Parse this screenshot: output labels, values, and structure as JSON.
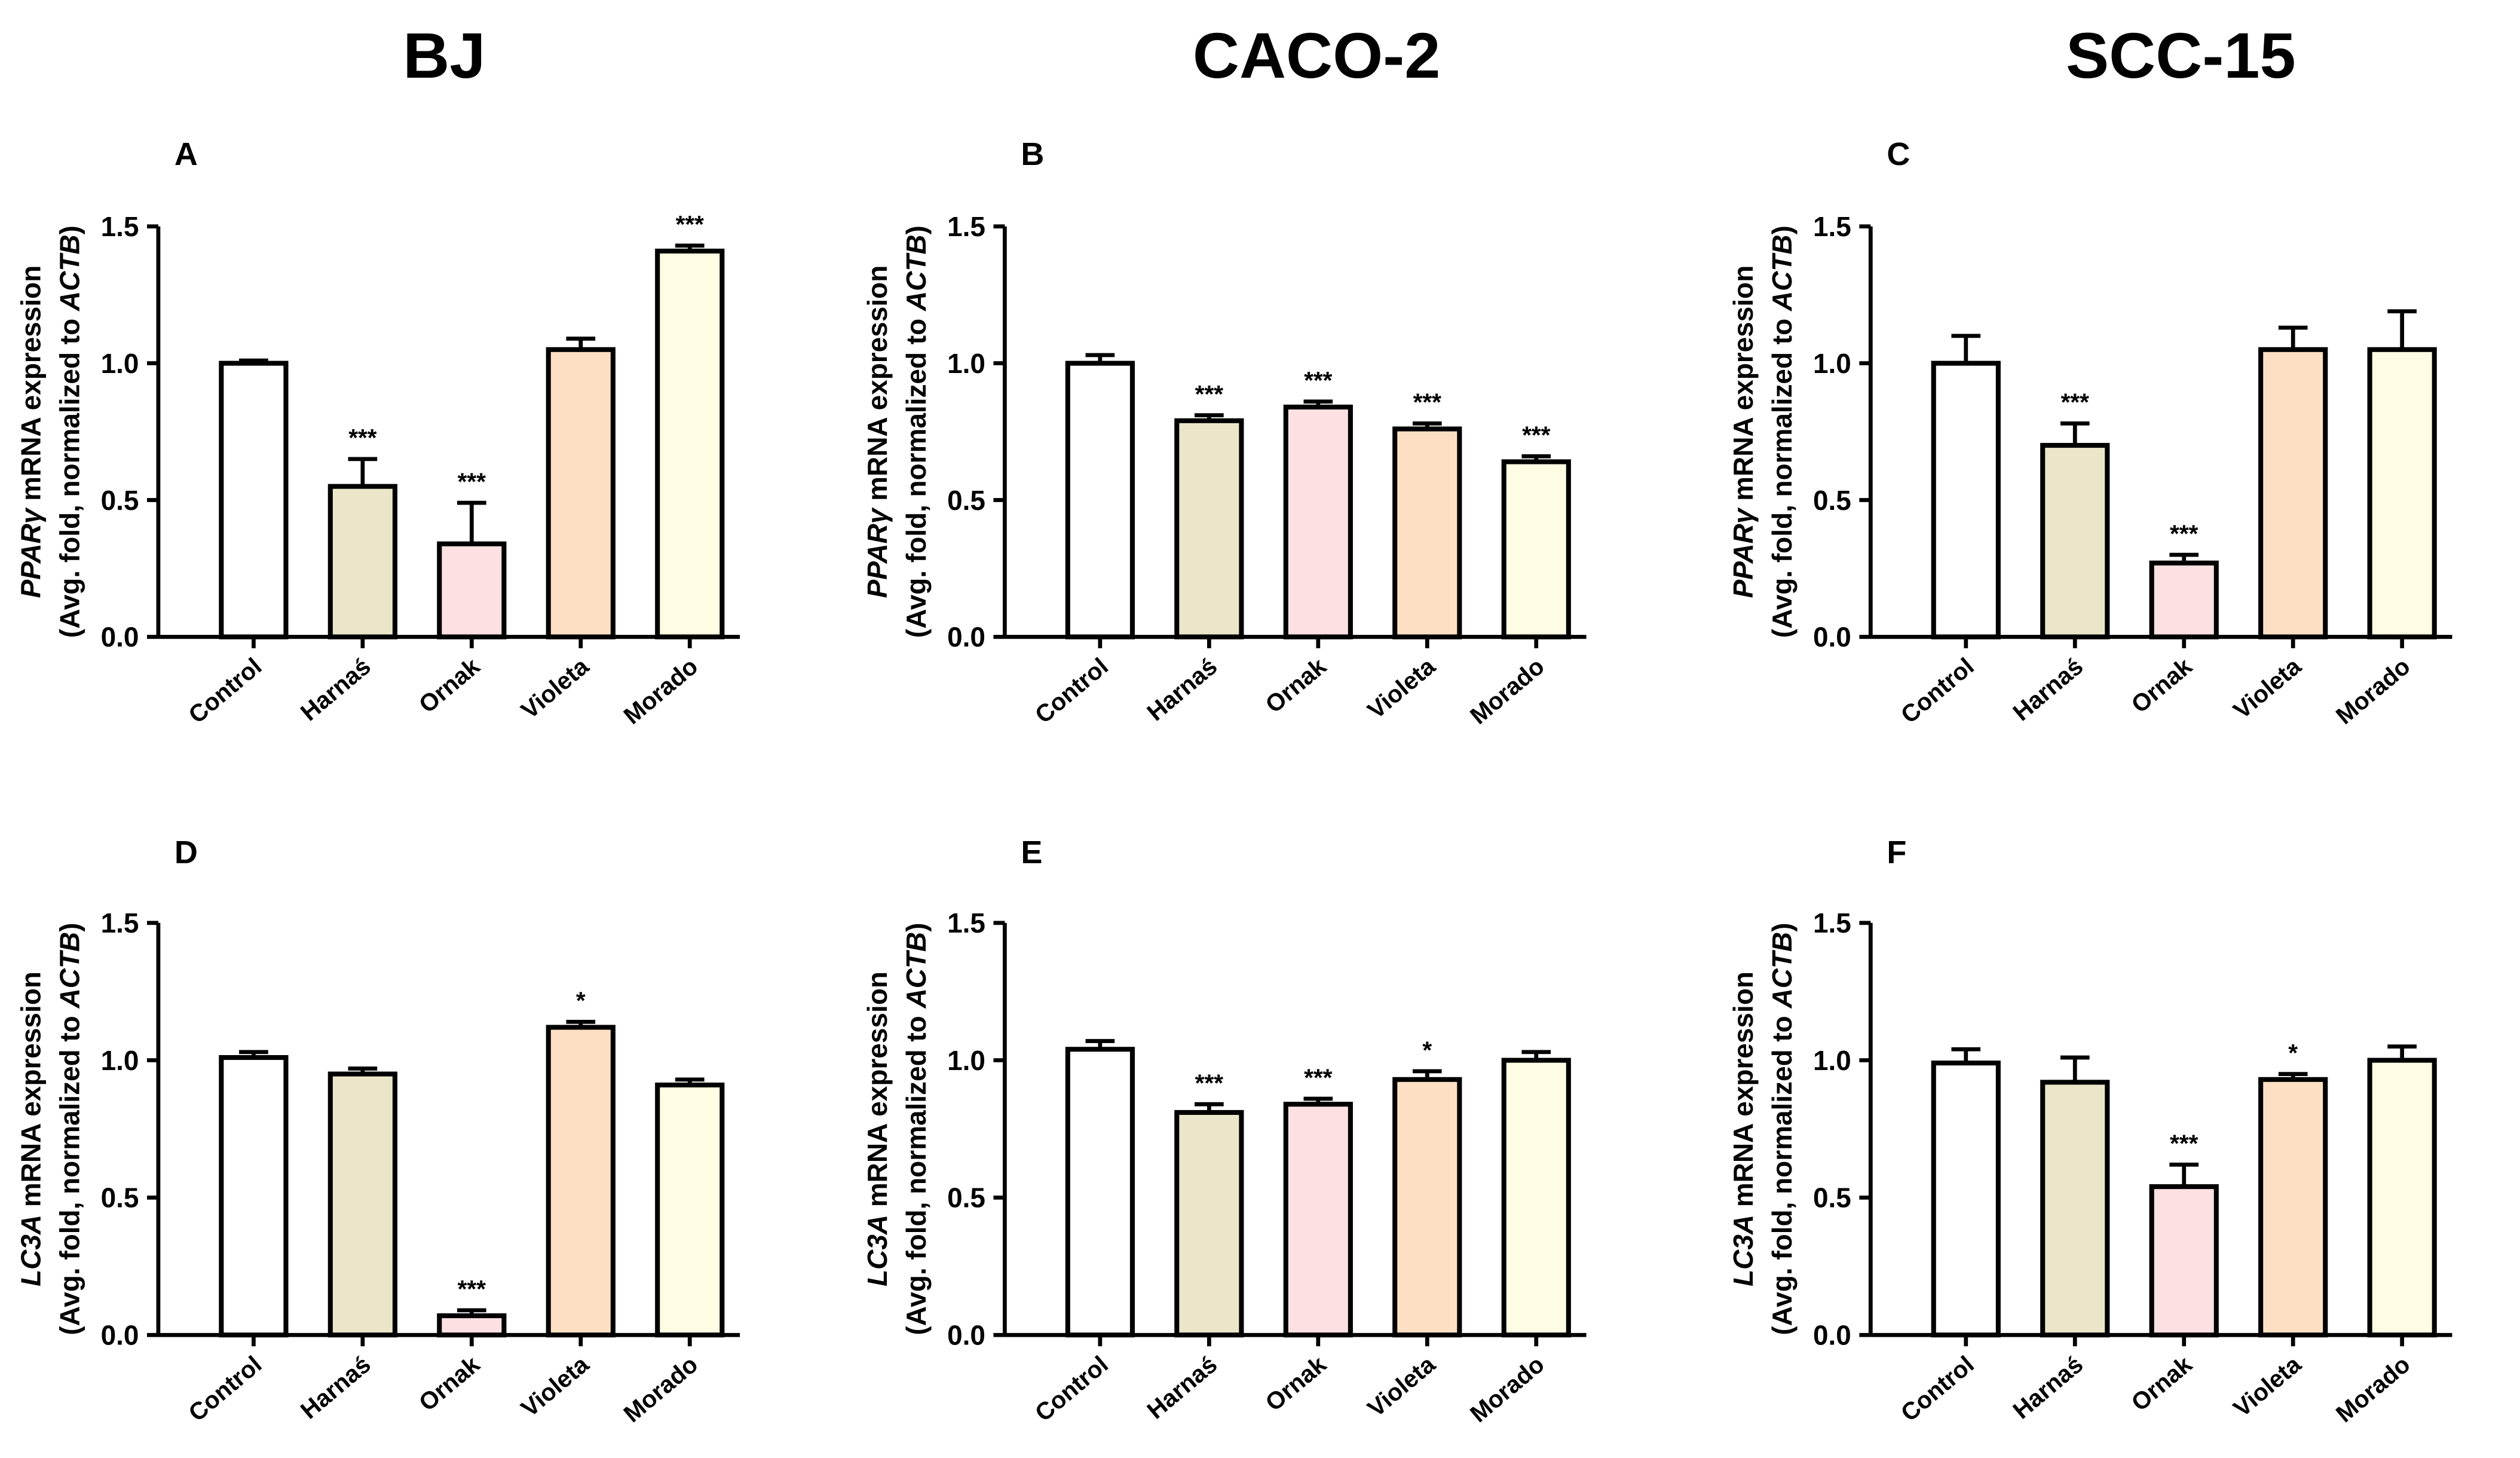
{
  "column_titles": [
    "BJ",
    "CACO-2",
    "SCC-15"
  ],
  "colors": {
    "Control": "#ffffff",
    "Harnaś": "#ebe6c9",
    "Ornak": "#fde0e2",
    "Violeta": "#fde0c4",
    "Morado": "#fefce2"
  },
  "chart_data": [
    {
      "panel": "A",
      "type": "bar",
      "cell_line": "BJ",
      "gene": "PPARγ",
      "ylabel_gene": "PPARγ",
      "ylabel_suffix": " mRNA expression",
      "ylabel2_prefix": "(Avg. fold, normalized to ",
      "ylabel2_gene": "ACTB",
      "ylabel2_suffix": ")",
      "categories": [
        "Control",
        "Harnaś",
        "Ornak",
        "Violeta",
        "Morado"
      ],
      "values": [
        1.0,
        0.55,
        0.34,
        1.05,
        1.41
      ],
      "errors": [
        0.01,
        0.1,
        0.15,
        0.04,
        0.02
      ],
      "significance": [
        "",
        "***",
        "***",
        "",
        "***"
      ],
      "ylim": [
        0,
        1.5
      ],
      "yticks": [
        "0.0",
        "0.5",
        "1.0",
        "1.5"
      ]
    },
    {
      "panel": "B",
      "type": "bar",
      "cell_line": "CACO-2",
      "gene": "PPARγ",
      "ylabel_gene": "PPARγ",
      "ylabel_suffix": " mRNA expression",
      "ylabel2_prefix": "(Avg. fold, normalized to ",
      "ylabel2_gene": "ACTB",
      "ylabel2_suffix": ")",
      "categories": [
        "Control",
        "Harnaś",
        "Ornak",
        "Violeta",
        "Morado"
      ],
      "values": [
        1.0,
        0.79,
        0.84,
        0.76,
        0.64
      ],
      "errors": [
        0.03,
        0.02,
        0.02,
        0.02,
        0.02
      ],
      "significance": [
        "",
        "***",
        "***",
        "***",
        "***"
      ],
      "ylim": [
        0,
        1.5
      ],
      "yticks": [
        "0.0",
        "0.5",
        "1.0",
        "1.5"
      ]
    },
    {
      "panel": "C",
      "type": "bar",
      "cell_line": "SCC-15",
      "gene": "PPARγ",
      "ylabel_gene": "PPARγ",
      "ylabel_suffix": " mRNA expression",
      "ylabel2_prefix": "(Avg. fold, normalized to ",
      "ylabel2_gene": "ACTB",
      "ylabel2_suffix": ")",
      "categories": [
        "Control",
        "Harnaś",
        "Ornak",
        "Violeta",
        "Morado"
      ],
      "values": [
        1.0,
        0.7,
        0.27,
        1.05,
        1.05
      ],
      "errors": [
        0.1,
        0.08,
        0.03,
        0.08,
        0.14
      ],
      "significance": [
        "",
        "***",
        "***",
        "",
        ""
      ],
      "ylim": [
        0,
        1.5
      ],
      "yticks": [
        "0.0",
        "0.5",
        "1.0",
        "1.5"
      ]
    },
    {
      "panel": "D",
      "type": "bar",
      "cell_line": "BJ",
      "gene": "LC3A",
      "ylabel_gene": "LC3A",
      "ylabel_suffix": " mRNA expression",
      "ylabel2_prefix": "(Avg. fold, normalized to ",
      "ylabel2_gene": "ACTB",
      "ylabel2_suffix": ")",
      "categories": [
        "Control",
        "Harnaś",
        "Ornak",
        "Violeta",
        "Morado"
      ],
      "values": [
        1.01,
        0.95,
        0.07,
        1.12,
        0.91
      ],
      "errors": [
        0.02,
        0.02,
        0.02,
        0.02,
        0.02
      ],
      "significance": [
        "",
        "",
        "***",
        "*",
        ""
      ],
      "ylim": [
        0,
        1.5
      ],
      "yticks": [
        "0.0",
        "0.5",
        "1.0",
        "1.5"
      ]
    },
    {
      "panel": "E",
      "type": "bar",
      "cell_line": "CACO-2",
      "gene": "LC3A",
      "ylabel_gene": "LC3A",
      "ylabel_suffix": " mRNA expression",
      "ylabel2_prefix": "(Avg. fold, normalized to ",
      "ylabel2_gene": "ACTB",
      "ylabel2_suffix": ")",
      "categories": [
        "Control",
        "Harnaś",
        "Ornak",
        "Violeta",
        "Morado"
      ],
      "values": [
        1.04,
        0.81,
        0.84,
        0.93,
        1.0
      ],
      "errors": [
        0.03,
        0.03,
        0.02,
        0.03,
        0.03
      ],
      "significance": [
        "",
        "***",
        "***",
        "*",
        ""
      ],
      "ylim": [
        0,
        1.5
      ],
      "yticks": [
        "0.0",
        "0.5",
        "1.0",
        "1.5"
      ]
    },
    {
      "panel": "F",
      "type": "bar",
      "cell_line": "SCC-15",
      "gene": "LC3A",
      "ylabel_gene": "LC3A",
      "ylabel_suffix": " mRNA expression",
      "ylabel2_prefix": "(Avg. fold, normalized to ",
      "ylabel2_gene": "ACTB",
      "ylabel2_suffix": ")",
      "categories": [
        "Control",
        "Harnaś",
        "Ornak",
        "Violeta",
        "Morado"
      ],
      "values": [
        0.99,
        0.92,
        0.54,
        0.93,
        1.0
      ],
      "errors": [
        0.05,
        0.09,
        0.08,
        0.02,
        0.05
      ],
      "significance": [
        "",
        "",
        "***",
        "*",
        ""
      ],
      "ylim": [
        0,
        1.5
      ],
      "yticks": [
        "0.0",
        "0.5",
        "1.0",
        "1.5"
      ]
    }
  ]
}
